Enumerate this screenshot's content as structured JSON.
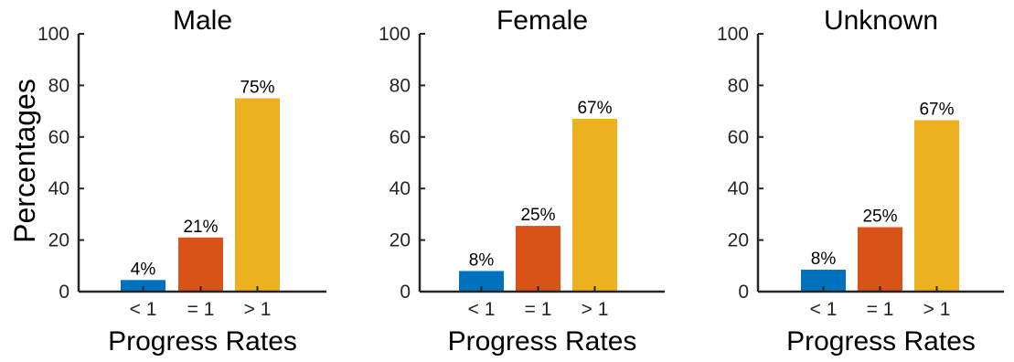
{
  "figure": {
    "ylabel": "Percentages"
  },
  "chart_data": [
    {
      "type": "bar",
      "title": "Male",
      "xlabel": "Progress Rates",
      "ylabel": "Percentages",
      "categories": [
        "< 1",
        "= 1",
        "> 1"
      ],
      "values": [
        4.5,
        21,
        75
      ],
      "data_labels": [
        "4%",
        "21%",
        "75%"
      ],
      "colors": [
        "#0072BD",
        "#D95319",
        "#EDB120"
      ],
      "ylim": [
        0,
        100
      ],
      "yticks": [
        0,
        20,
        40,
        60,
        80,
        100
      ],
      "grid": false,
      "legend": "none"
    },
    {
      "type": "bar",
      "title": "Female",
      "xlabel": "Progress Rates",
      "ylabel": "",
      "categories": [
        "< 1",
        "= 1",
        "> 1"
      ],
      "values": [
        8,
        25.5,
        67
      ],
      "data_labels": [
        "8%",
        "25%",
        "67%"
      ],
      "colors": [
        "#0072BD",
        "#D95319",
        "#EDB120"
      ],
      "ylim": [
        0,
        100
      ],
      "yticks": [
        0,
        20,
        40,
        60,
        80,
        100
      ],
      "grid": false,
      "legend": "none"
    },
    {
      "type": "bar",
      "title": "Unknown",
      "xlabel": "Progress Rates",
      "ylabel": "",
      "categories": [
        "< 1",
        "= 1",
        "> 1"
      ],
      "values": [
        8.5,
        25,
        66.5
      ],
      "data_labels": [
        "8%",
        "25%",
        "67%"
      ],
      "colors": [
        "#0072BD",
        "#D95319",
        "#EDB120"
      ],
      "ylim": [
        0,
        100
      ],
      "yticks": [
        0,
        20,
        40,
        60,
        80,
        100
      ],
      "grid": false,
      "legend": "none"
    }
  ]
}
